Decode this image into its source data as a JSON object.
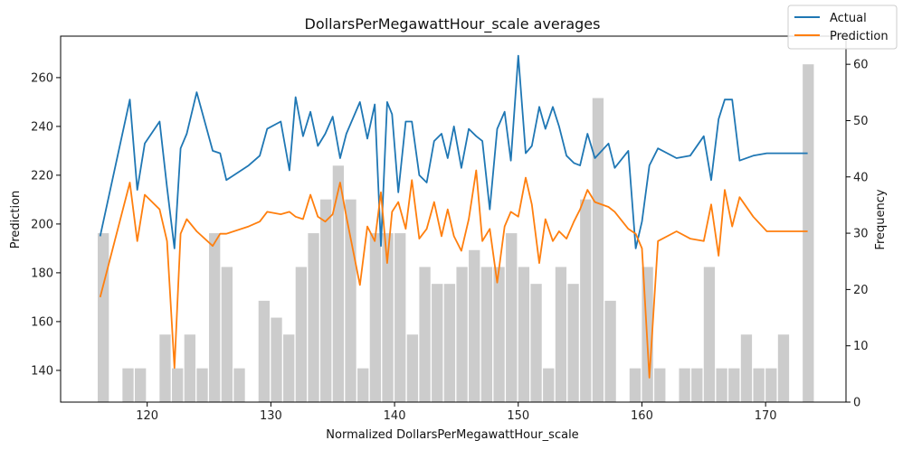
{
  "chart_data": {
    "type": "line",
    "title": "DollarsPerMegawattHour_scale averages",
    "xlabel": "Normalized DollarsPerMegawattHour_scale",
    "ylabel": "Prediction",
    "y2label": "Frequency",
    "xlim": [
      113,
      176.5
    ],
    "ylim": [
      127,
      277
    ],
    "y2lim": [
      0,
      65
    ],
    "x_ticks": [
      120,
      130,
      140,
      150,
      160,
      170
    ],
    "y_ticks": [
      140,
      160,
      180,
      200,
      220,
      240,
      260
    ],
    "y2_ticks": [
      0,
      10,
      20,
      30,
      40,
      50,
      60
    ],
    "legend_position": "top-right",
    "colors": {
      "actual": "#1f77b4",
      "prediction": "#ff7f0e",
      "histogram": "#cccccc"
    },
    "series": [
      {
        "name": "Actual",
        "x": [
          116.2,
          118.6,
          119.2,
          119.8,
          121.0,
          121.6,
          122.2,
          122.7,
          123.2,
          124.0,
          125.3,
          125.9,
          126.4,
          128.2,
          129.1,
          129.7,
          130.8,
          131.5,
          132.0,
          132.6,
          133.2,
          133.8,
          134.4,
          135.0,
          135.6,
          136.1,
          137.2,
          137.8,
          138.4,
          138.9,
          139.4,
          139.8,
          140.3,
          140.9,
          141.4,
          142.0,
          142.6,
          143.2,
          143.8,
          144.3,
          144.8,
          145.4,
          146.0,
          146.6,
          147.1,
          147.7,
          148.3,
          148.9,
          149.4,
          150.0,
          150.6,
          151.1,
          151.7,
          152.2,
          152.8,
          153.3,
          153.9,
          154.5,
          155.0,
          155.6,
          156.2,
          157.3,
          157.8,
          158.9,
          159.5,
          160.0,
          160.6,
          161.3,
          162.8,
          163.9,
          165.0,
          165.6,
          166.2,
          166.7,
          167.3,
          167.9,
          169.0,
          170.1,
          170.6,
          171.7,
          173.4
        ],
        "y": [
          195,
          251,
          214,
          233,
          242,
          215,
          190,
          231,
          237,
          254,
          230,
          229,
          218,
          224,
          228,
          239,
          242,
          222,
          252,
          236,
          246,
          232,
          237,
          244,
          227,
          237,
          250,
          235,
          249,
          191,
          250,
          245,
          213,
          242,
          242,
          220,
          217,
          234,
          237,
          227,
          240,
          223,
          239,
          236,
          234,
          206,
          239,
          246,
          226,
          269,
          229,
          232,
          248,
          239,
          248,
          240,
          228,
          225,
          224,
          237,
          227,
          233,
          223,
          230,
          190,
          201,
          224,
          231,
          227,
          228,
          236,
          218,
          243,
          251,
          251,
          226,
          228,
          229,
          229,
          229,
          229
        ]
      },
      {
        "name": "Prediction",
        "x": [
          116.2,
          118.6,
          119.2,
          119.8,
          121.0,
          121.6,
          122.2,
          122.7,
          123.2,
          124.0,
          125.3,
          125.9,
          126.4,
          128.2,
          129.1,
          129.7,
          130.8,
          131.5,
          132.0,
          132.6,
          133.2,
          133.8,
          134.4,
          135.0,
          135.6,
          136.1,
          137.2,
          137.8,
          138.4,
          138.9,
          139.4,
          139.8,
          140.3,
          140.9,
          141.4,
          142.0,
          142.6,
          143.2,
          143.8,
          144.3,
          144.8,
          145.4,
          146.0,
          146.6,
          147.1,
          147.7,
          148.3,
          148.9,
          149.4,
          150.0,
          150.6,
          151.1,
          151.7,
          152.2,
          152.8,
          153.3,
          153.9,
          154.5,
          155.0,
          155.6,
          156.2,
          157.3,
          157.8,
          158.9,
          159.5,
          160.0,
          160.6,
          161.3,
          162.8,
          163.9,
          165.0,
          165.6,
          166.2,
          166.7,
          167.3,
          167.9,
          169.0,
          170.1,
          170.6,
          171.7,
          173.4
        ],
        "y": [
          170,
          217,
          193,
          212,
          206,
          193,
          141,
          196,
          202,
          197,
          191,
          196,
          196,
          199,
          201,
          205,
          204,
          205,
          203,
          202,
          212,
          203,
          201,
          204,
          217,
          203,
          175,
          199,
          193,
          213,
          184,
          205,
          209,
          198,
          218,
          194,
          198,
          209,
          195,
          206,
          195,
          189,
          202,
          222,
          193,
          198,
          176,
          199,
          205,
          203,
          219,
          208,
          184,
          202,
          193,
          197,
          194,
          201,
          206,
          214,
          209,
          207,
          205,
          198,
          196,
          190,
          137,
          193,
          197,
          194,
          193,
          208,
          187,
          214,
          199,
          211,
          203,
          197,
          197,
          197,
          197
        ]
      }
    ],
    "histogram": {
      "bin_starts": [
        116,
        117,
        118,
        119,
        120,
        121,
        122,
        123,
        124,
        125,
        126,
        127,
        128,
        129,
        130,
        131,
        132,
        133,
        134,
        135,
        136,
        137,
        138,
        139,
        140,
        141,
        142,
        143,
        144,
        145,
        146,
        147,
        148,
        149,
        150,
        151,
        152,
        153,
        154,
        155,
        156,
        157,
        158,
        159,
        160,
        161,
        162,
        163,
        164,
        165,
        166,
        167,
        168,
        169,
        170,
        171,
        172,
        173
      ],
      "bin_width": 0.9,
      "counts": [
        30,
        0,
        6,
        6,
        0,
        12,
        6,
        12,
        6,
        30,
        24,
        6,
        0,
        18,
        15,
        12,
        24,
        30,
        36,
        42,
        36,
        6,
        30,
        30,
        30,
        12,
        24,
        21,
        21,
        24,
        27,
        24,
        24,
        30,
        24,
        21,
        6,
        24,
        21,
        36,
        54,
        18,
        0,
        6,
        24,
        6,
        0,
        6,
        6,
        24,
        6,
        6,
        12,
        6,
        6,
        12,
        0,
        60
      ]
    }
  }
}
